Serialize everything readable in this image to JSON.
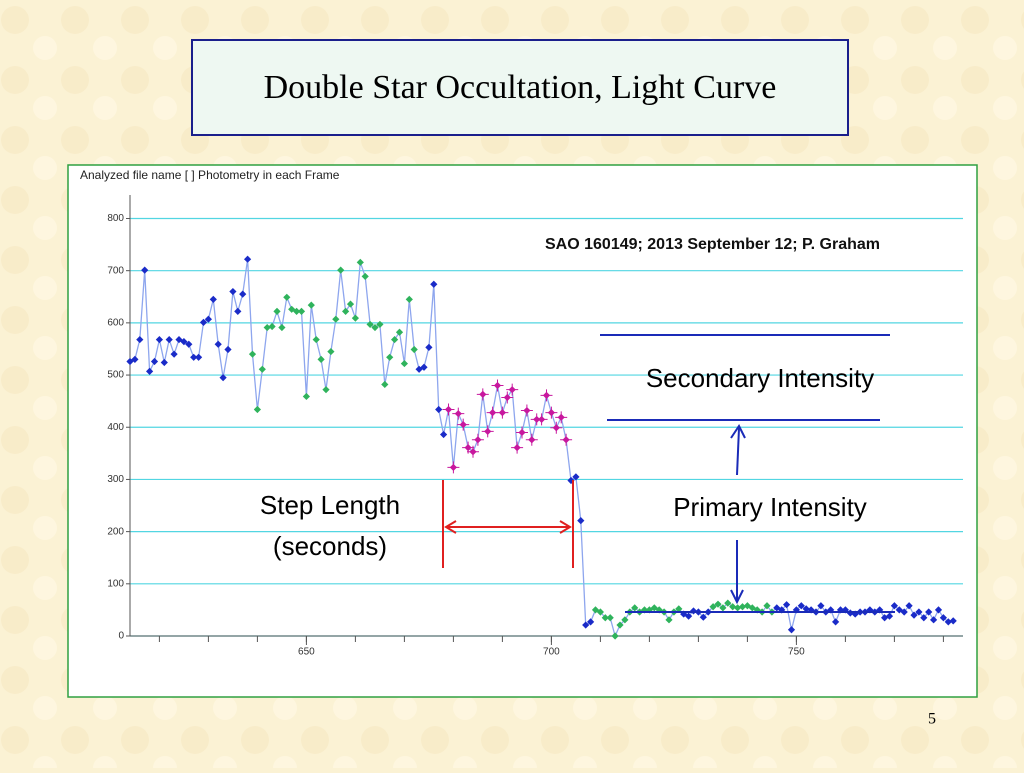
{
  "page_number": "5",
  "title": "Double Star Occultation,  Light Curve",
  "chart_data": {
    "type": "line",
    "header": "Analyzed file name [ ]   Photometry in each Frame",
    "subtitle": "SAO 160149;  2013 September 12;  P.  Graham",
    "annotations": [
      "Secondary Intensity",
      "Primary Intensity",
      "Step Length",
      "(seconds)"
    ],
    "x": [
      614,
      615,
      616,
      617,
      618,
      619,
      620,
      621,
      622,
      623,
      624,
      625,
      626,
      627,
      628,
      629,
      630,
      631,
      632,
      633,
      634,
      635,
      636,
      637,
      638,
      639,
      640,
      641,
      642,
      643,
      644,
      645,
      646,
      647,
      648,
      649,
      650,
      651,
      652,
      653,
      654,
      655,
      656,
      657,
      658,
      659,
      660,
      661,
      662,
      663,
      664,
      665,
      666,
      667,
      668,
      669,
      670,
      671,
      672,
      673,
      674,
      675,
      676,
      677,
      678,
      679,
      680,
      681,
      682,
      683,
      684,
      685,
      686,
      687,
      688,
      689,
      690,
      691,
      692,
      693,
      694,
      695,
      696,
      697,
      698,
      699,
      700,
      701,
      702,
      703,
      704,
      705,
      706,
      707,
      708,
      709,
      710,
      711,
      712,
      713,
      714,
      715,
      716,
      717,
      718,
      719,
      720,
      721,
      722,
      723,
      724,
      725,
      726,
      727,
      728,
      729,
      730,
      731,
      732,
      733,
      734,
      735,
      736,
      737,
      738,
      739,
      740,
      741,
      742,
      743,
      744,
      745,
      746,
      747,
      748,
      749,
      750,
      751,
      752,
      753,
      754,
      755,
      756,
      757,
      758,
      759,
      760,
      761,
      762,
      763,
      764,
      765,
      766,
      767,
      768,
      769,
      770,
      771,
      772,
      773,
      774,
      775,
      776,
      777,
      778,
      779,
      780,
      781,
      782
    ],
    "values": [
      526,
      530,
      568,
      701,
      507,
      526,
      568,
      524,
      568,
      540,
      568,
      564,
      559,
      534,
      534,
      601,
      607,
      645,
      559,
      495,
      549,
      660,
      622,
      655,
      722,
      540,
      434,
      511,
      591,
      593,
      622,
      591,
      649,
      626,
      622,
      622,
      459,
      634,
      568,
      530,
      472,
      545,
      607,
      701,
      622,
      636,
      609,
      716,
      689,
      597,
      591,
      597,
      482,
      534,
      568,
      582,
      522,
      645,
      549,
      511,
      515,
      553,
      674,
      434,
      386,
      434,
      323,
      426,
      405,
      361,
      353,
      376,
      463,
      392,
      428,
      480,
      428,
      457,
      472,
      361,
      390,
      432,
      376,
      415,
      415,
      461,
      428,
      399,
      419,
      376,
      298,
      305,
      221,
      21,
      27,
      50,
      46,
      35,
      35,
      0,
      21,
      31,
      46,
      54,
      46,
      50,
      50,
      54,
      50,
      46,
      31,
      46,
      52,
      42,
      38,
      48,
      46,
      36,
      46,
      56,
      61,
      54,
      63,
      56,
      54,
      56,
      58,
      54,
      50,
      46,
      58,
      46,
      54,
      50,
      60,
      12,
      50,
      58,
      52,
      50,
      46,
      58,
      46,
      50,
      27,
      50,
      50,
      44,
      42,
      46,
      46,
      50,
      46,
      50,
      35,
      38,
      58,
      50,
      46,
      58,
      40,
      46,
      35,
      46,
      31,
      50,
      35,
      27,
      29
    ],
    "marker_colors": [
      "b",
      "b",
      "b",
      "b",
      "b",
      "b",
      "b",
      "b",
      "b",
      "b",
      "b",
      "b",
      "b",
      "b",
      "b",
      "b",
      "b",
      "b",
      "b",
      "b",
      "b",
      "b",
      "b",
      "b",
      "b",
      "g",
      "g",
      "g",
      "g",
      "g",
      "g",
      "g",
      "g",
      "g",
      "g",
      "g",
      "g",
      "g",
      "g",
      "g",
      "g",
      "g",
      "g",
      "g",
      "g",
      "g",
      "g",
      "g",
      "g",
      "g",
      "g",
      "g",
      "g",
      "g",
      "g",
      "g",
      "g",
      "g",
      "g",
      "b",
      "b",
      "b",
      "b",
      "b",
      "b",
      "m",
      "m",
      "m",
      "m",
      "m",
      "m",
      "m",
      "m",
      "m",
      "m",
      "m",
      "m",
      "m",
      "m",
      "m",
      "m",
      "m",
      "m",
      "m",
      "m",
      "m",
      "m",
      "m",
      "m",
      "m",
      "b",
      "b",
      "b",
      "b",
      "b",
      "g",
      "g",
      "g",
      "g",
      "g",
      "g",
      "g",
      "g",
      "g",
      "g",
      "g",
      "g",
      "g",
      "g",
      "g",
      "g",
      "g",
      "g",
      "b",
      "b",
      "b",
      "b",
      "b",
      "b",
      "g",
      "g",
      "g",
      "g",
      "g",
      "g",
      "g",
      "g",
      "g",
      "g",
      "g",
      "g",
      "g",
      "b",
      "b",
      "b",
      "b",
      "b",
      "b",
      "b",
      "b",
      "b",
      "b",
      "b",
      "b",
      "b",
      "b",
      "b",
      "b",
      "b",
      "b",
      "b",
      "b",
      "b",
      "b",
      "b",
      "b",
      "b",
      "b",
      "b",
      "b",
      "b",
      "b",
      "b",
      "b",
      "b",
      "b",
      "b",
      "b",
      "b"
    ],
    "palette": {
      "b": "#1a2bc8",
      "g": "#2fb35c",
      "m": "#c8189e"
    },
    "line_color": "#8ea6ee",
    "grid_color": "#52d6e2",
    "xlim": [
      614,
      784
    ],
    "ylim": [
      0,
      845
    ],
    "xticks": [
      650,
      700,
      750
    ],
    "xminorticks": [
      620,
      630,
      640,
      650,
      660,
      670,
      680,
      690,
      700,
      710,
      720,
      730,
      740,
      750,
      760,
      770,
      780
    ],
    "yticks": [
      0,
      100,
      200,
      300,
      400,
      500,
      600,
      700,
      800
    ],
    "grid": true
  }
}
